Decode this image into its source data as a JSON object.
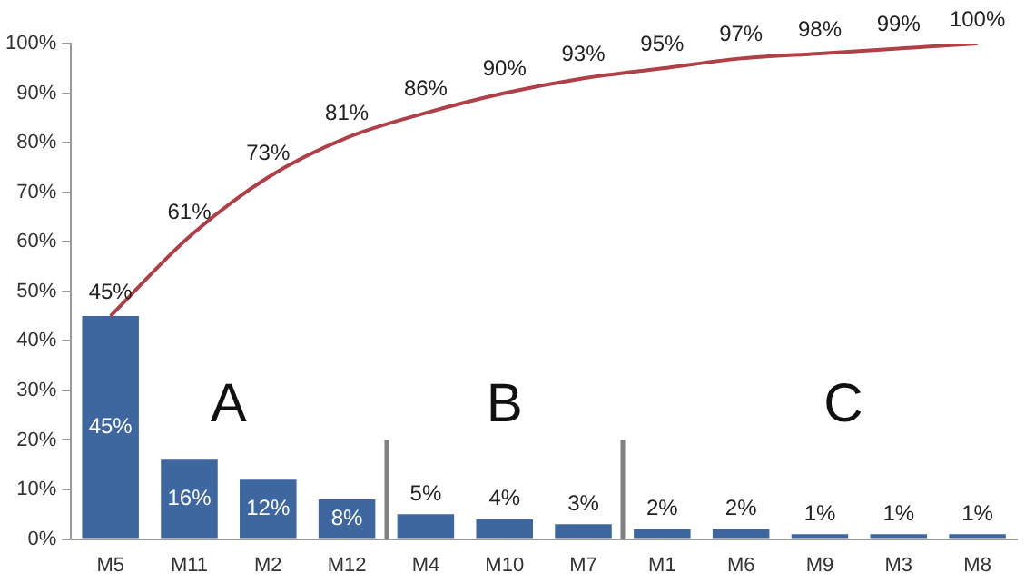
{
  "chart_data": {
    "type": "bar",
    "categories": [
      "M5",
      "M11",
      "M2",
      "M12",
      "M4",
      "M10",
      "M7",
      "M1",
      "M6",
      "M9",
      "M3",
      "M8"
    ],
    "series": [
      {
        "color": "#3e67a0",
        "values": [
          45,
          16,
          12,
          8,
          5,
          4,
          3,
          2,
          2,
          1,
          1,
          1
        ],
        "value_labels": [
          "45%",
          "16%",
          "12%",
          "8%",
          "5%",
          "4%",
          "3%",
          "2%",
          "2%",
          "1%",
          "1%",
          "1%"
        ]
      },
      {
        "type": "line",
        "color": "#b04048",
        "values": [
          45,
          61,
          73,
          81,
          86,
          90,
          93,
          95,
          97,
          98,
          99,
          100
        ],
        "value_labels": [
          "45%",
          "61%",
          "73%",
          "81%",
          "86%",
          "90%",
          "93%",
          "95%",
          "97%",
          "98%",
          "99%",
          "100%"
        ]
      }
    ],
    "ylim": [
      0,
      100
    ],
    "yticks": [
      {
        "value": 0,
        "label": "0%"
      },
      {
        "value": 10,
        "label": "10%"
      },
      {
        "value": 20,
        "label": "20%"
      },
      {
        "value": 30,
        "label": "30%"
      },
      {
        "value": 40,
        "label": "40%"
      },
      {
        "value": 50,
        "label": "50%"
      },
      {
        "value": 60,
        "label": "60%"
      },
      {
        "value": 70,
        "label": "70%"
      },
      {
        "value": 80,
        "label": "80%"
      },
      {
        "value": 90,
        "label": "90%"
      },
      {
        "value": 100,
        "label": "100%"
      }
    ],
    "annotations": [
      "A",
      "B",
      "C"
    ],
    "grid": false,
    "legend": false,
    "marker": "none",
    "line_style": "solid"
  }
}
